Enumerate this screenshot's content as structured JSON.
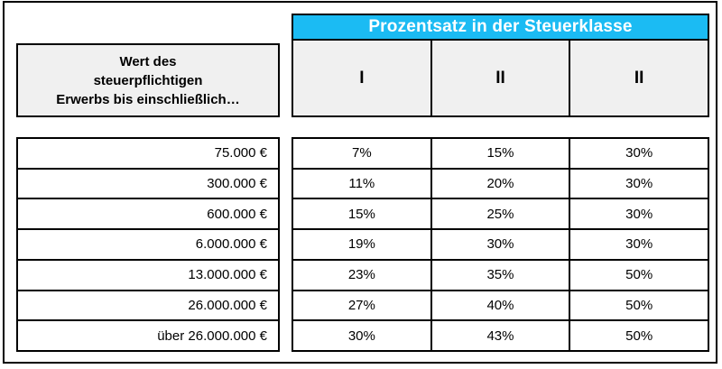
{
  "accent_color": "#1bbbf3",
  "header": {
    "title": "Prozentsatz in der Steuerklasse",
    "left_label_multiline": "Wert des\nsteuerpflichtigen\nErwerbs bis einschließlich…",
    "columns": [
      "I",
      "II",
      "II"
    ]
  },
  "chart_data": {
    "type": "table",
    "title": "Prozentsatz in der Steuerklasse",
    "row_header": "Wert des steuerpflichtigen Erwerbs bis einschließlich…",
    "columns": [
      "I",
      "II",
      "II"
    ],
    "rows": [
      [
        "75.000 €",
        "7%",
        "15%",
        "30%"
      ],
      [
        "300.000 €",
        "11%",
        "20%",
        "30%"
      ],
      [
        "600.000 €",
        "15%",
        "25%",
        "30%"
      ],
      [
        "6.000.000 €",
        "19%",
        "30%",
        "30%"
      ],
      [
        "13.000.000 €",
        "23%",
        "35%",
        "50%"
      ],
      [
        "26.000.000 €",
        "27%",
        "40%",
        "50%"
      ],
      [
        "über 26.000.000 €",
        "30%",
        "43%",
        "50%"
      ]
    ]
  }
}
